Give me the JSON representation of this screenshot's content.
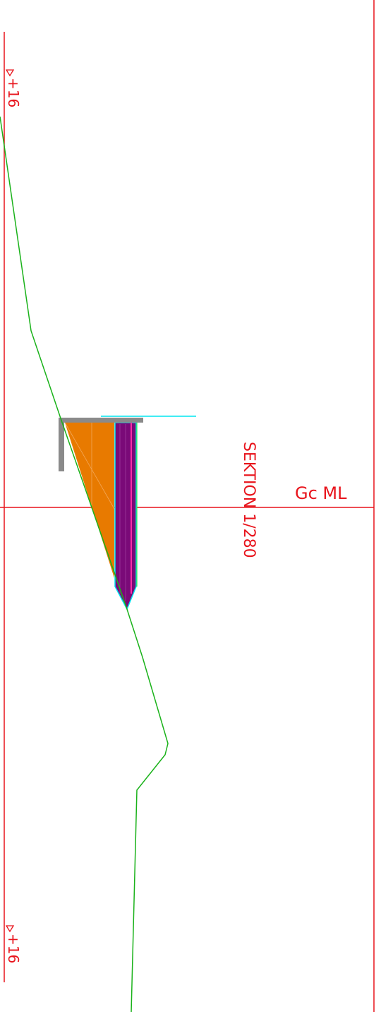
{
  "labels": {
    "level_top": "+16",
    "level_bottom": "+16",
    "section": "SEKTION 1/280",
    "axis": "Gc ML"
  }
}
